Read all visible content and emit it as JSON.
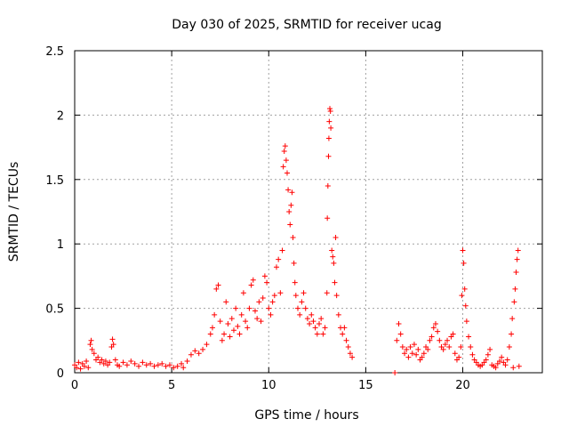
{
  "colors": {
    "series": "#ff0000",
    "grid": "#a0a0a0",
    "axis": "#000000"
  },
  "chart_data": {
    "type": "scatter",
    "title": "Day 030 of 2025, SRMTID for receiver ucag",
    "xlabel": "GPS time / hours",
    "ylabel": "SRMTID / TECUs",
    "xlim": [
      0,
      24.1
    ],
    "ylim": [
      0,
      2.5
    ],
    "xticks": [
      0,
      5,
      10,
      15,
      20
    ],
    "xtick_labels": [
      "0",
      "5",
      "10",
      "15",
      "20"
    ],
    "yticks": [
      0,
      0.5,
      1,
      1.5,
      2,
      2.5
    ],
    "ytick_labels": [
      "0",
      "0.5",
      "1",
      "1.5",
      "2",
      "2.5"
    ],
    "grid": true,
    "marker": "plus",
    "series": [
      {
        "name": "SRMTID",
        "points": [
          [
            0.0,
            0.06
          ],
          [
            0.1,
            0.04
          ],
          [
            0.2,
            0.08
          ],
          [
            0.3,
            0.03
          ],
          [
            0.4,
            0.07
          ],
          [
            0.5,
            0.05
          ],
          [
            0.6,
            0.09
          ],
          [
            0.7,
            0.04
          ],
          [
            0.8,
            0.22
          ],
          [
            0.85,
            0.25
          ],
          [
            0.9,
            0.18
          ],
          [
            1.0,
            0.15
          ],
          [
            1.1,
            0.1
          ],
          [
            1.2,
            0.12
          ],
          [
            1.3,
            0.08
          ],
          [
            1.4,
            0.1
          ],
          [
            1.5,
            0.07
          ],
          [
            1.6,
            0.09
          ],
          [
            1.7,
            0.06
          ],
          [
            1.8,
            0.08
          ],
          [
            1.9,
            0.2
          ],
          [
            1.95,
            0.26
          ],
          [
            2.0,
            0.22
          ],
          [
            2.1,
            0.1
          ],
          [
            2.2,
            0.06
          ],
          [
            2.3,
            0.05
          ],
          [
            2.5,
            0.08
          ],
          [
            2.7,
            0.06
          ],
          [
            2.9,
            0.09
          ],
          [
            3.1,
            0.07
          ],
          [
            3.3,
            0.05
          ],
          [
            3.5,
            0.08
          ],
          [
            3.7,
            0.06
          ],
          [
            3.9,
            0.07
          ],
          [
            4.1,
            0.05
          ],
          [
            4.3,
            0.06
          ],
          [
            4.5,
            0.07
          ],
          [
            4.7,
            0.05
          ],
          [
            4.9,
            0.06
          ],
          [
            5.1,
            0.04
          ],
          [
            5.3,
            0.05
          ],
          [
            5.5,
            0.07
          ],
          [
            5.6,
            0.04
          ],
          [
            5.8,
            0.09
          ],
          [
            6.0,
            0.14
          ],
          [
            6.2,
            0.17
          ],
          [
            6.4,
            0.15
          ],
          [
            6.6,
            0.18
          ],
          [
            6.8,
            0.22
          ],
          [
            7.0,
            0.3
          ],
          [
            7.1,
            0.35
          ],
          [
            7.2,
            0.45
          ],
          [
            7.3,
            0.65
          ],
          [
            7.4,
            0.68
          ],
          [
            7.5,
            0.4
          ],
          [
            7.6,
            0.25
          ],
          [
            7.7,
            0.3
          ],
          [
            7.8,
            0.55
          ],
          [
            7.9,
            0.38
          ],
          [
            8.0,
            0.28
          ],
          [
            8.1,
            0.42
          ],
          [
            8.2,
            0.33
          ],
          [
            8.3,
            0.5
          ],
          [
            8.4,
            0.36
          ],
          [
            8.5,
            0.3
          ],
          [
            8.6,
            0.45
          ],
          [
            8.7,
            0.62
          ],
          [
            8.8,
            0.4
          ],
          [
            8.9,
            0.35
          ],
          [
            9.0,
            0.5
          ],
          [
            9.1,
            0.68
          ],
          [
            9.2,
            0.72
          ],
          [
            9.3,
            0.48
          ],
          [
            9.4,
            0.42
          ],
          [
            9.5,
            0.55
          ],
          [
            9.6,
            0.4
          ],
          [
            9.7,
            0.58
          ],
          [
            9.8,
            0.75
          ],
          [
            9.9,
            0.7
          ],
          [
            10.0,
            0.5
          ],
          [
            10.1,
            0.45
          ],
          [
            10.2,
            0.55
          ],
          [
            10.3,
            0.6
          ],
          [
            10.4,
            0.82
          ],
          [
            10.5,
            0.88
          ],
          [
            10.6,
            0.62
          ],
          [
            10.7,
            0.95
          ],
          [
            10.75,
            1.6
          ],
          [
            10.8,
            1.72
          ],
          [
            10.85,
            1.76
          ],
          [
            10.9,
            1.65
          ],
          [
            10.95,
            1.55
          ],
          [
            11.0,
            1.42
          ],
          [
            11.05,
            1.25
          ],
          [
            11.1,
            1.15
          ],
          [
            11.15,
            1.3
          ],
          [
            11.2,
            1.4
          ],
          [
            11.25,
            1.05
          ],
          [
            11.3,
            0.85
          ],
          [
            11.35,
            0.7
          ],
          [
            11.4,
            0.6
          ],
          [
            11.5,
            0.5
          ],
          [
            11.6,
            0.45
          ],
          [
            11.7,
            0.55
          ],
          [
            11.8,
            0.62
          ],
          [
            11.9,
            0.5
          ],
          [
            12.0,
            0.42
          ],
          [
            12.1,
            0.38
          ],
          [
            12.2,
            0.45
          ],
          [
            12.3,
            0.4
          ],
          [
            12.4,
            0.35
          ],
          [
            12.5,
            0.3
          ],
          [
            12.6,
            0.38
          ],
          [
            12.7,
            0.42
          ],
          [
            12.8,
            0.3
          ],
          [
            12.9,
            0.35
          ],
          [
            13.0,
            0.62
          ],
          [
            13.02,
            1.2
          ],
          [
            13.05,
            1.45
          ],
          [
            13.08,
            1.68
          ],
          [
            13.1,
            1.82
          ],
          [
            13.12,
            1.95
          ],
          [
            13.15,
            2.05
          ],
          [
            13.18,
            2.03
          ],
          [
            13.2,
            1.9
          ],
          [
            13.25,
            0.95
          ],
          [
            13.3,
            0.9
          ],
          [
            13.35,
            0.85
          ],
          [
            13.4,
            0.7
          ],
          [
            13.45,
            1.05
          ],
          [
            13.5,
            0.6
          ],
          [
            13.6,
            0.45
          ],
          [
            13.7,
            0.35
          ],
          [
            13.8,
            0.3
          ],
          [
            13.9,
            0.35
          ],
          [
            14.0,
            0.25
          ],
          [
            14.1,
            0.2
          ],
          [
            14.2,
            0.15
          ],
          [
            14.3,
            0.12
          ],
          [
            16.5,
            0.0
          ],
          [
            16.6,
            0.25
          ],
          [
            16.7,
            0.38
          ],
          [
            16.8,
            0.3
          ],
          [
            16.9,
            0.2
          ],
          [
            17.0,
            0.15
          ],
          [
            17.1,
            0.18
          ],
          [
            17.2,
            0.12
          ],
          [
            17.3,
            0.2
          ],
          [
            17.4,
            0.15
          ],
          [
            17.5,
            0.22
          ],
          [
            17.6,
            0.14
          ],
          [
            17.7,
            0.18
          ],
          [
            17.8,
            0.1
          ],
          [
            17.9,
            0.12
          ],
          [
            18.0,
            0.15
          ],
          [
            18.1,
            0.2
          ],
          [
            18.2,
            0.18
          ],
          [
            18.3,
            0.25
          ],
          [
            18.4,
            0.28
          ],
          [
            18.5,
            0.35
          ],
          [
            18.6,
            0.38
          ],
          [
            18.7,
            0.32
          ],
          [
            18.8,
            0.25
          ],
          [
            18.9,
            0.2
          ],
          [
            19.0,
            0.18
          ],
          [
            19.1,
            0.22
          ],
          [
            19.2,
            0.25
          ],
          [
            19.3,
            0.2
          ],
          [
            19.4,
            0.28
          ],
          [
            19.5,
            0.3
          ],
          [
            19.6,
            0.15
          ],
          [
            19.7,
            0.1
          ],
          [
            19.8,
            0.12
          ],
          [
            19.9,
            0.2
          ],
          [
            19.95,
            0.6
          ],
          [
            20.0,
            0.95
          ],
          [
            20.05,
            0.85
          ],
          [
            20.1,
            0.65
          ],
          [
            20.15,
            0.52
          ],
          [
            20.2,
            0.4
          ],
          [
            20.3,
            0.28
          ],
          [
            20.4,
            0.2
          ],
          [
            20.5,
            0.14
          ],
          [
            20.6,
            0.1
          ],
          [
            20.7,
            0.08
          ],
          [
            20.8,
            0.06
          ],
          [
            20.9,
            0.05
          ],
          [
            21.0,
            0.06
          ],
          [
            21.1,
            0.08
          ],
          [
            21.2,
            0.1
          ],
          [
            21.3,
            0.14
          ],
          [
            21.4,
            0.18
          ],
          [
            21.5,
            0.06
          ],
          [
            21.6,
            0.05
          ],
          [
            21.7,
            0.04
          ],
          [
            21.8,
            0.07
          ],
          [
            21.9,
            0.09
          ],
          [
            22.0,
            0.12
          ],
          [
            22.1,
            0.08
          ],
          [
            22.2,
            0.06
          ],
          [
            22.3,
            0.1
          ],
          [
            22.4,
            0.2
          ],
          [
            22.5,
            0.3
          ],
          [
            22.55,
            0.42
          ],
          [
            22.6,
            0.04
          ],
          [
            22.65,
            0.55
          ],
          [
            22.7,
            0.65
          ],
          [
            22.75,
            0.78
          ],
          [
            22.8,
            0.88
          ],
          [
            22.85,
            0.95
          ],
          [
            22.9,
            0.05
          ]
        ]
      }
    ]
  }
}
